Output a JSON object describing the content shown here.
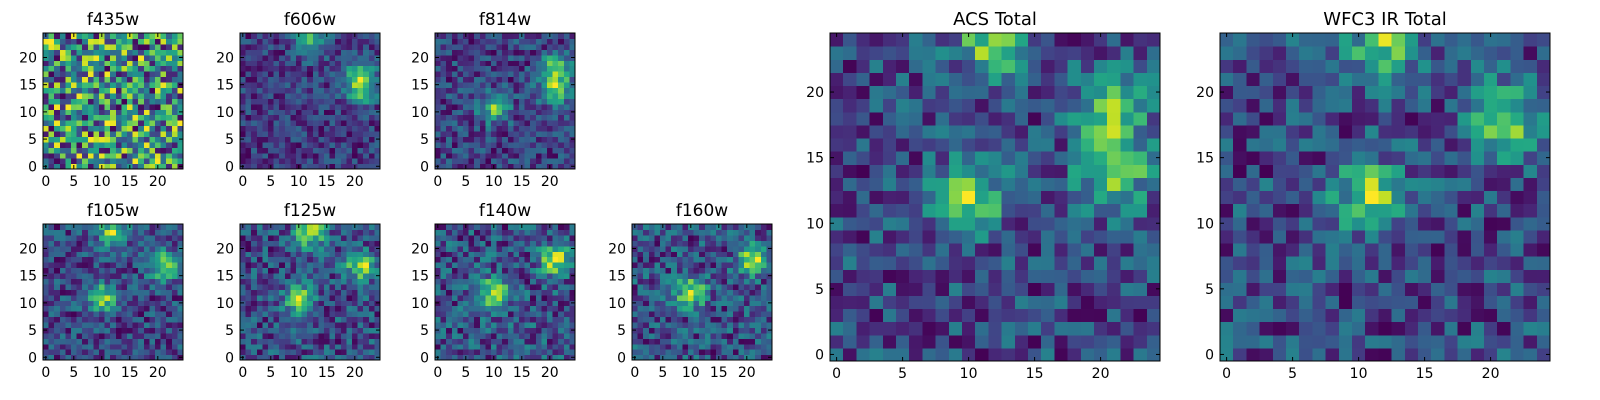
{
  "chart_data": [
    {
      "type": "heatmap",
      "title": "f435w",
      "colormap": "viridis",
      "grid": false,
      "xlim": [
        -0.5,
        24.5
      ],
      "ylim": [
        -0.5,
        24.5
      ],
      "xticks": [
        0,
        5,
        10,
        15,
        20
      ],
      "yticks": [
        0,
        5,
        10,
        15,
        20
      ],
      "bright_spots": []
    },
    {
      "type": "heatmap",
      "title": "f606w",
      "colormap": "viridis",
      "grid": false,
      "xlim": [
        -0.5,
        24.5
      ],
      "ylim": [
        -0.5,
        24.5
      ],
      "xticks": [
        0,
        5,
        10,
        15,
        20
      ],
      "yticks": [
        0,
        5,
        10,
        15,
        20
      ],
      "bright_spots": [
        [
          21,
          17
        ],
        [
          21,
          14
        ],
        [
          12,
          23
        ]
      ]
    },
    {
      "type": "heatmap",
      "title": "f814w",
      "colormap": "viridis",
      "grid": false,
      "xlim": [
        -0.5,
        24.5
      ],
      "ylim": [
        -0.5,
        24.5
      ],
      "xticks": [
        0,
        5,
        10,
        15,
        20
      ],
      "yticks": [
        0,
        5,
        10,
        15,
        20
      ],
      "bright_spots": [
        [
          21,
          18
        ],
        [
          21,
          14
        ],
        [
          10,
          11
        ]
      ]
    },
    {
      "type": "heatmap",
      "title": "f105w",
      "colormap": "viridis",
      "grid": false,
      "xlim": [
        -0.5,
        24.5
      ],
      "ylim": [
        -0.5,
        24.5
      ],
      "xticks": [
        0,
        5,
        10,
        15,
        20
      ],
      "yticks": [
        0,
        5,
        10,
        15,
        20
      ],
      "bright_spots": [
        [
          21,
          17
        ],
        [
          10,
          11
        ],
        [
          12,
          23
        ]
      ]
    },
    {
      "type": "heatmap",
      "title": "f125w",
      "colormap": "viridis",
      "grid": false,
      "xlim": [
        -0.5,
        24.5
      ],
      "ylim": [
        -0.5,
        24.5
      ],
      "xticks": [
        0,
        5,
        10,
        15,
        20
      ],
      "yticks": [
        0,
        5,
        10,
        15,
        20
      ],
      "bright_spots": [
        [
          21,
          17
        ],
        [
          10,
          11
        ],
        [
          12,
          23
        ]
      ]
    },
    {
      "type": "heatmap",
      "title": "f140w",
      "colormap": "viridis",
      "grid": false,
      "xlim": [
        -0.5,
        24.5
      ],
      "ylim": [
        -0.5,
        24.5
      ],
      "xticks": [
        0,
        5,
        10,
        15,
        20
      ],
      "yticks": [
        0,
        5,
        10,
        15,
        20
      ],
      "bright_spots": [
        [
          21,
          18
        ],
        [
          10,
          12
        ]
      ]
    },
    {
      "type": "heatmap",
      "title": "f160w",
      "colormap": "viridis",
      "grid": false,
      "xlim": [
        -0.5,
        24.5
      ],
      "ylim": [
        -0.5,
        24.5
      ],
      "xticks": [
        0,
        5,
        10,
        15,
        20
      ],
      "yticks": [
        0,
        5,
        10,
        15,
        20
      ],
      "bright_spots": [
        [
          21,
          18
        ],
        [
          10,
          12
        ]
      ]
    },
    {
      "type": "heatmap",
      "title": "ACS Total",
      "colormap": "viridis",
      "grid": false,
      "xlim": [
        -0.5,
        24.5
      ],
      "ylim": [
        -0.5,
        24.5
      ],
      "xticks": [
        0,
        5,
        10,
        15,
        20
      ],
      "yticks": [
        0,
        5,
        10,
        15,
        20
      ],
      "bright_spots": [
        [
          21,
          19
        ],
        [
          21,
          14
        ],
        [
          12,
          24
        ],
        [
          10,
          12
        ]
      ]
    },
    {
      "type": "heatmap",
      "title": "WFC3 IR Total",
      "colormap": "viridis",
      "grid": false,
      "xlim": [
        -0.5,
        24.5
      ],
      "ylim": [
        -0.5,
        24.5
      ],
      "xticks": [
        0,
        5,
        10,
        15,
        20
      ],
      "yticks": [
        0,
        5,
        10,
        15,
        20
      ],
      "bright_spots": [
        [
          21,
          18
        ],
        [
          12,
          24
        ],
        [
          11,
          12
        ]
      ]
    }
  ]
}
